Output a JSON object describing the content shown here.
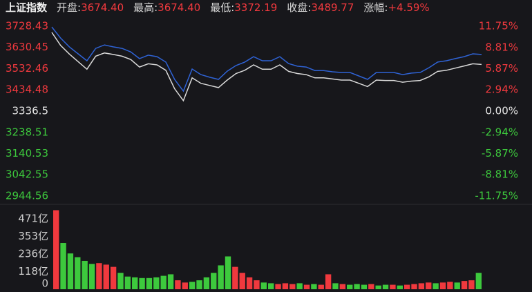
{
  "header": {
    "title": "上证指数",
    "stats": [
      {
        "label": "开盘:",
        "value": "3674.40"
      },
      {
        "label": "最高:",
        "value": "3674.40"
      },
      {
        "label": "最低:",
        "value": "3372.19"
      },
      {
        "label": "收盘:",
        "value": "3489.77"
      },
      {
        "label": "涨幅:",
        "value": "+4.59%"
      }
    ]
  },
  "chart_data": [
    {
      "type": "line",
      "series": [
        {
          "color": "#2f63d6",
          "values": [
            3725,
            3674,
            3633,
            3601,
            3569,
            3626,
            3642,
            3633,
            3626,
            3610,
            3579,
            3595,
            3588,
            3563,
            3483,
            3429,
            3531,
            3505,
            3493,
            3483,
            3521,
            3547,
            3563,
            3588,
            3569,
            3569,
            3588,
            3556,
            3544,
            3540,
            3524,
            3524,
            3518,
            3515,
            3515,
            3499,
            3483,
            3515,
            3515,
            3515,
            3505,
            3512,
            3515,
            3537,
            3563,
            3569,
            3579,
            3588,
            3601,
            3598
          ]
        },
        {
          "color": "#d9d9d9",
          "values": [
            3700,
            3640,
            3600,
            3565,
            3530,
            3590,
            3605,
            3598,
            3590,
            3575,
            3540,
            3555,
            3550,
            3525,
            3440,
            3385,
            3490,
            3465,
            3455,
            3445,
            3480,
            3510,
            3525,
            3550,
            3530,
            3530,
            3550,
            3520,
            3510,
            3505,
            3490,
            3490,
            3485,
            3480,
            3480,
            3465,
            3450,
            3480,
            3478,
            3478,
            3470,
            3475,
            3478,
            3495,
            3520,
            3525,
            3535,
            3545,
            3555,
            3552
          ]
        }
      ],
      "ylim": [
        2944.56,
        3728.43
      ],
      "yticks": [
        3728.43,
        3630.45,
        3532.46,
        3434.48,
        3336.5,
        3238.51,
        3140.53,
        3042.55,
        2944.56
      ],
      "y2lim": [
        -11.75,
        11.75
      ],
      "y2ticks": [
        {
          "value": 11.75,
          "label": "11.75%"
        },
        {
          "value": 8.81,
          "label": "8.81%"
        },
        {
          "value": 5.87,
          "label": "5.87%"
        },
        {
          "value": 2.94,
          "label": "2.94%"
        },
        {
          "value": 0,
          "label": "0.00%"
        },
        {
          "value": -2.94,
          "label": "-2.94%"
        },
        {
          "value": -5.87,
          "label": "-5.87%"
        },
        {
          "value": -8.81,
          "label": "-8.81%"
        },
        {
          "value": -11.75,
          "label": "-11.75%"
        }
      ],
      "tick_colors": {
        "up": "#f0393e",
        "flat": "#e6e6e6",
        "down": "#3dc93d"
      }
    },
    {
      "type": "bar",
      "values": [
        530,
        310,
        240,
        215,
        190,
        170,
        175,
        165,
        150,
        110,
        85,
        80,
        75,
        75,
        80,
        90,
        100,
        60,
        45,
        50,
        60,
        80,
        110,
        160,
        220,
        150,
        110,
        80,
        60,
        45,
        40,
        35,
        40,
        35,
        40,
        30,
        35,
        30,
        100,
        40,
        35,
        30,
        35,
        30,
        35,
        25,
        30,
        30,
        25,
        30,
        35,
        40,
        45,
        40,
        45,
        50,
        45,
        55,
        60,
        110
      ],
      "colors": [
        "#f0393e",
        "#3dc93d",
        "#3dc93d",
        "#3dc93d",
        "#3dc93d",
        "#3dc93d",
        "#f0393e",
        "#f0393e",
        "#f0393e",
        "#3dc93d",
        "#3dc93d",
        "#3dc93d",
        "#3dc93d",
        "#3dc93d",
        "#3dc93d",
        "#3dc93d",
        "#3dc93d",
        "#f0393e",
        "#f0393e",
        "#3dc93d",
        "#3dc93d",
        "#3dc93d",
        "#3dc93d",
        "#3dc93d",
        "#3dc93d",
        "#f0393e",
        "#f0393e",
        "#f0393e",
        "#f0393e",
        "#3dc93d",
        "#3dc93d",
        "#f0393e",
        "#f0393e",
        "#f0393e",
        "#3dc93d",
        "#f0393e",
        "#3dc93d",
        "#f0393e",
        "#f0393e",
        "#3dc93d",
        "#f0393e",
        "#3dc93d",
        "#3dc93d",
        "#3dc93d",
        "#f0393e",
        "#3dc93d",
        "#3dc93d",
        "#f0393e",
        "#3dc93d",
        "#f0393e",
        "#f0393e",
        "#f0393e",
        "#f0393e",
        "#3dc93d",
        "#f0393e",
        "#f0393e",
        "#3dc93d",
        "#f0393e",
        "#f0393e",
        "#3dc93d"
      ],
      "ylim": [
        0,
        560
      ],
      "yticks": [
        {
          "value": 471,
          "label": "471亿"
        },
        {
          "value": 353,
          "label": "353亿"
        },
        {
          "value": 236,
          "label": "236亿"
        },
        {
          "value": 118,
          "label": "118亿"
        },
        0
      ],
      "tick_color": "#cfcfcf"
    }
  ]
}
